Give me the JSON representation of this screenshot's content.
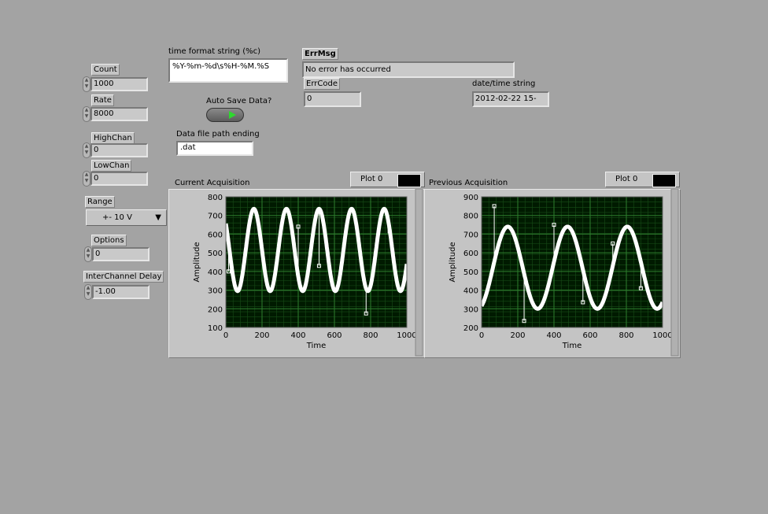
{
  "controls": {
    "count": {
      "label": "Count",
      "value": "1000"
    },
    "rate": {
      "label": "Rate",
      "value": "8000"
    },
    "highchan": {
      "label": "HighChan",
      "value": "0"
    },
    "lowchan": {
      "label": "LowChan",
      "value": "0"
    },
    "range": {
      "label": "Range",
      "value": "+- 10 V"
    },
    "options": {
      "label": "Options",
      "value": "0"
    },
    "interchannel_delay": {
      "label": "InterChannel Delay",
      "value": "-1.00"
    },
    "time_format": {
      "label": "time format string (%c)",
      "value": "%Y-%m-%d\\s%H-%M.%S"
    },
    "auto_save": {
      "label": "Auto Save Data?"
    },
    "data_file_ending": {
      "label": "Data file path ending",
      "value": ".dat"
    }
  },
  "error": {
    "errmsg_label": "ErrMsg",
    "errmsg_value": "No error has occurred",
    "errcode_label": "ErrCode",
    "errcode_value": "0"
  },
  "datetime": {
    "label": "date/time string",
    "value": "2012-02-22 15-"
  },
  "graphs": [
    {
      "title": "Current Acquisition",
      "legend": "Plot 0",
      "xlabel": "Time",
      "ylabel": "Amplitude"
    },
    {
      "title": "Previous Acquisition",
      "legend": "Plot 0",
      "xlabel": "Time",
      "ylabel": "Amplitude"
    }
  ],
  "colors": {
    "plot_bg": "#001a00",
    "grid_major": "#2e7d2e",
    "grid_minor": "#174d17",
    "trace": "#ffffff",
    "panel_bg": "#a3a3a3"
  },
  "chart_data": [
    {
      "type": "line",
      "title": "Current Acquisition",
      "xlabel": "Time",
      "ylabel": "Amplitude",
      "xlim": [
        0,
        1000
      ],
      "ylim": [
        100,
        800
      ],
      "xticks": [
        "0",
        "200",
        "400",
        "600",
        "800",
        "1000"
      ],
      "yticks": [
        "100",
        "200",
        "300",
        "400",
        "500",
        "600",
        "700",
        "800"
      ],
      "grid": true,
      "series": [
        {
          "name": "Plot 0",
          "sine": {
            "offset": 515,
            "amplitude": 220,
            "period": 180,
            "phase_x": 155
          }
        }
      ],
      "spikes": [
        {
          "x": 15,
          "y": 400
        },
        {
          "x": 400,
          "y": 640
        },
        {
          "x": 515,
          "y": 430
        },
        {
          "x": 775,
          "y": 175
        },
        {
          "x": 905,
          "y": 615
        }
      ]
    },
    {
      "type": "line",
      "title": "Previous Acquisition",
      "xlabel": "Time",
      "ylabel": "Amplitude",
      "xlim": [
        0,
        1000
      ],
      "ylim": [
        200,
        900
      ],
      "xticks": [
        "0",
        "200",
        "400",
        "600",
        "800",
        "1000"
      ],
      "yticks": [
        "200",
        "300",
        "400",
        "500",
        "600",
        "700",
        "800",
        "900"
      ],
      "grid": true,
      "series": [
        {
          "name": "Plot 0",
          "sine": {
            "offset": 520,
            "amplitude": 220,
            "period": 330,
            "phase_x": 145
          }
        }
      ],
      "spikes": [
        {
          "x": 70,
          "y": 850
        },
        {
          "x": 235,
          "y": 235
        },
        {
          "x": 400,
          "y": 750
        },
        {
          "x": 560,
          "y": 335
        },
        {
          "x": 725,
          "y": 650
        },
        {
          "x": 880,
          "y": 410
        }
      ]
    }
  ]
}
